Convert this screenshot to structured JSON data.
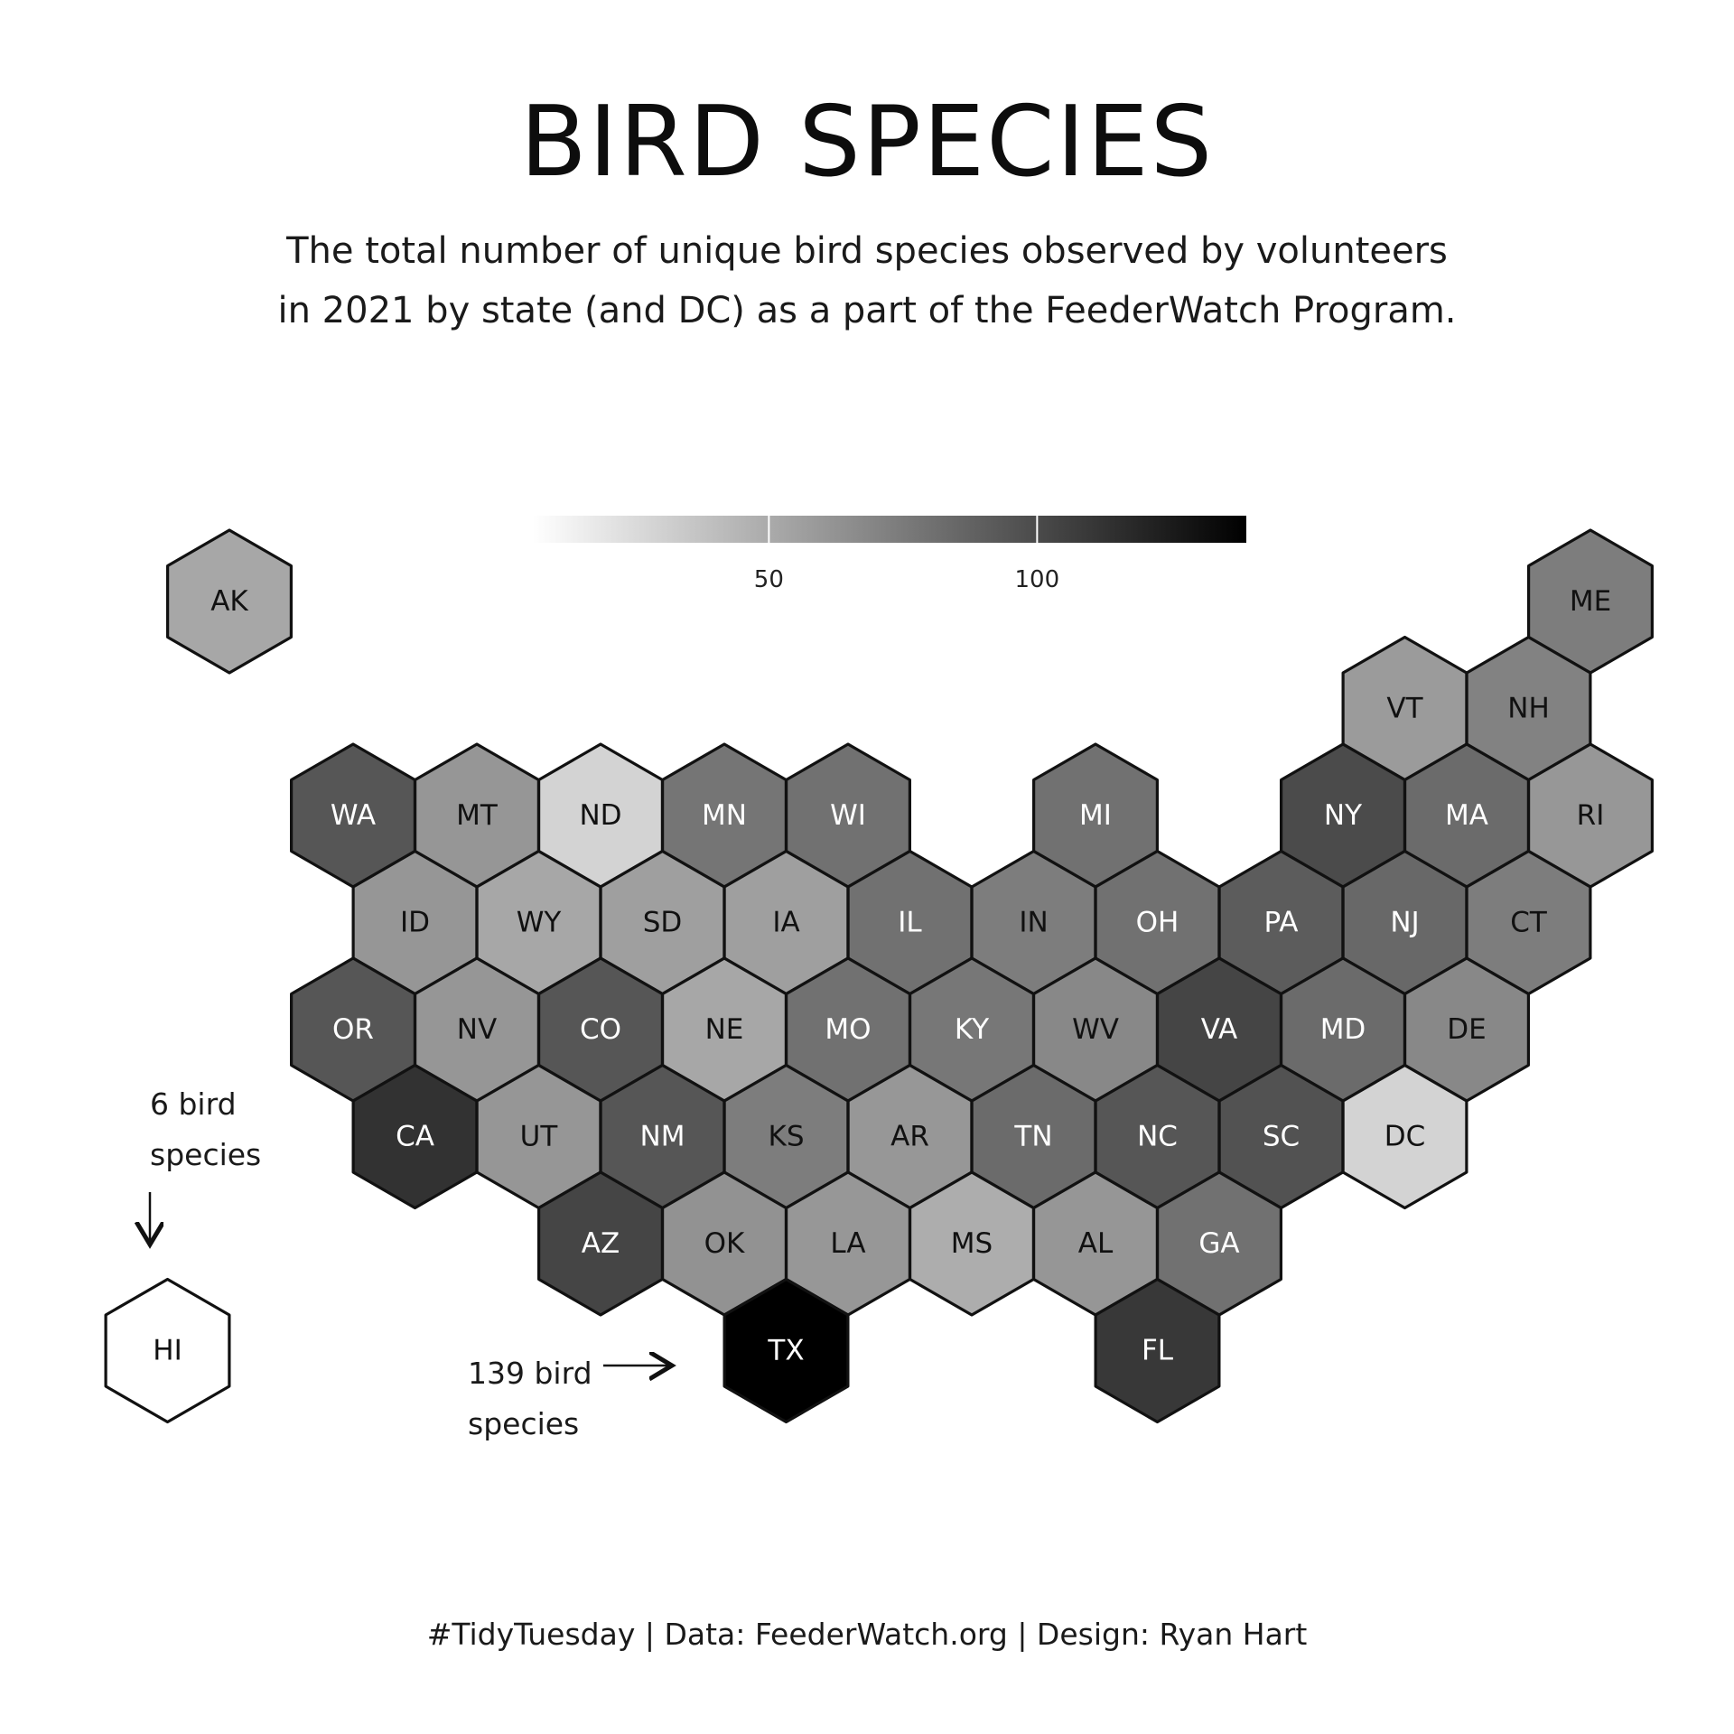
{
  "title": "BIRD SPECIES",
  "subtitle_line1": "The total number of unique bird species observed by volunteers",
  "subtitle_line2": "in 2021 by state (and DC) as a part of the FeederWatch Program.",
  "caption": "#TidyTuesday | Data: FeederWatch.org | Design: Ryan Hart",
  "legend": {
    "min": 6,
    "max": 139,
    "ticks": [
      50,
      100
    ],
    "tick_labels": [
      "50",
      "100"
    ]
  },
  "annotations": {
    "hi_note_line1": "6 bird",
    "hi_note_line2": "species",
    "tx_note_line1": "139 bird",
    "tx_note_line2": "species"
  },
  "chart_data": {
    "type": "hexbin-map",
    "title": "BIRD SPECIES",
    "value_label": "unique bird species observed",
    "scale": {
      "min": 6,
      "max": 139,
      "low_color": "#ffffff",
      "high_color": "#000000"
    },
    "states": [
      {
        "abbr": "AK",
        "col": 0,
        "row": 0,
        "value": 52
      },
      {
        "abbr": "ME",
        "col": 11,
        "row": 0,
        "value": 74
      },
      {
        "abbr": "VT",
        "col": 9.5,
        "row": 1,
        "value": 58
      },
      {
        "abbr": "NH",
        "col": 10.5,
        "row": 1,
        "value": 71
      },
      {
        "abbr": "WA",
        "col": 1,
        "row": 2,
        "value": 94
      },
      {
        "abbr": "MT",
        "col": 2,
        "row": 2,
        "value": 61
      },
      {
        "abbr": "ND",
        "col": 3,
        "row": 2,
        "value": 29
      },
      {
        "abbr": "MN",
        "col": 4,
        "row": 2,
        "value": 78
      },
      {
        "abbr": "WI",
        "col": 5,
        "row": 2,
        "value": 80
      },
      {
        "abbr": "MI",
        "col": 7,
        "row": 2,
        "value": 80
      },
      {
        "abbr": "NY",
        "col": 9,
        "row": 2,
        "value": 100
      },
      {
        "abbr": "MA",
        "col": 10,
        "row": 2,
        "value": 83
      },
      {
        "abbr": "RI",
        "col": 11,
        "row": 2,
        "value": 60
      },
      {
        "abbr": "ID",
        "col": 1.5,
        "row": 3,
        "value": 61
      },
      {
        "abbr": "WY",
        "col": 2.5,
        "row": 3,
        "value": 52
      },
      {
        "abbr": "SD",
        "col": 3.5,
        "row": 3,
        "value": 56
      },
      {
        "abbr": "IA",
        "col": 4.5,
        "row": 3,
        "value": 56
      },
      {
        "abbr": "IL",
        "col": 5.5,
        "row": 3,
        "value": 80
      },
      {
        "abbr": "IN",
        "col": 6.5,
        "row": 3,
        "value": 74
      },
      {
        "abbr": "OH",
        "col": 7.5,
        "row": 3,
        "value": 80
      },
      {
        "abbr": "PA",
        "col": 8.5,
        "row": 3,
        "value": 91
      },
      {
        "abbr": "NJ",
        "col": 9.5,
        "row": 3,
        "value": 85
      },
      {
        "abbr": "CT",
        "col": 10.5,
        "row": 3,
        "value": 74
      },
      {
        "abbr": "OR",
        "col": 1,
        "row": 4,
        "value": 94
      },
      {
        "abbr": "NV",
        "col": 2,
        "row": 4,
        "value": 61
      },
      {
        "abbr": "CO",
        "col": 3,
        "row": 4,
        "value": 94
      },
      {
        "abbr": "NE",
        "col": 4,
        "row": 4,
        "value": 52
      },
      {
        "abbr": "MO",
        "col": 5,
        "row": 4,
        "value": 80
      },
      {
        "abbr": "KY",
        "col": 6,
        "row": 4,
        "value": 77
      },
      {
        "abbr": "WV",
        "col": 7,
        "row": 4,
        "value": 68
      },
      {
        "abbr": "VA",
        "col": 8,
        "row": 4,
        "value": 103
      },
      {
        "abbr": "MD",
        "col": 9,
        "row": 4,
        "value": 83
      },
      {
        "abbr": "DE",
        "col": 10,
        "row": 4,
        "value": 68
      },
      {
        "abbr": "CA",
        "col": 1.5,
        "row": 5,
        "value": 113
      },
      {
        "abbr": "UT",
        "col": 2.5,
        "row": 5,
        "value": 61
      },
      {
        "abbr": "NM",
        "col": 3.5,
        "row": 5,
        "value": 94
      },
      {
        "abbr": "KS",
        "col": 4.5,
        "row": 5,
        "value": 74
      },
      {
        "abbr": "AR",
        "col": 5.5,
        "row": 5,
        "value": 60
      },
      {
        "abbr": "TN",
        "col": 6.5,
        "row": 5,
        "value": 83
      },
      {
        "abbr": "NC",
        "col": 7.5,
        "row": 5,
        "value": 94
      },
      {
        "abbr": "SC",
        "col": 8.5,
        "row": 5,
        "value": 96
      },
      {
        "abbr": "DC",
        "col": 9.5,
        "row": 5,
        "value": 29
      },
      {
        "abbr": "AZ",
        "col": 3,
        "row": 6,
        "value": 103
      },
      {
        "abbr": "OK",
        "col": 4,
        "row": 6,
        "value": 63
      },
      {
        "abbr": "LA",
        "col": 5,
        "row": 6,
        "value": 60
      },
      {
        "abbr": "MS",
        "col": 6,
        "row": 6,
        "value": 49
      },
      {
        "abbr": "AL",
        "col": 7,
        "row": 6,
        "value": 61
      },
      {
        "abbr": "GA",
        "col": 8,
        "row": 6,
        "value": 80
      },
      {
        "abbr": "HI",
        "col": -0.5,
        "row": 7,
        "value": 6
      },
      {
        "abbr": "TX",
        "col": 4.5,
        "row": 7,
        "value": 139
      },
      {
        "abbr": "FL",
        "col": 7.5,
        "row": 7,
        "value": 110
      }
    ]
  }
}
